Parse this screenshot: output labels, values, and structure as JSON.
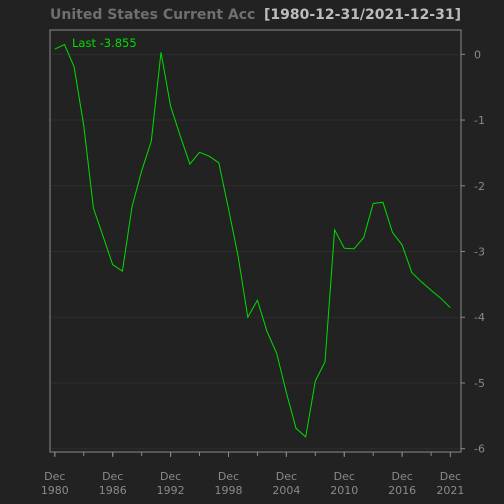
{
  "colors": {
    "background": "#222222",
    "plot_border": "#8a8a8a",
    "grid": "#2d2d2d",
    "line": "#00dd00",
    "title": "#6f6f6f",
    "range_text": "#bdbdbd",
    "tick_text": "#8a8a8a"
  },
  "header": {
    "title": "United States Current Account Balance (% of GDP)",
    "range": "[1980-12-31/2021-12-31]"
  },
  "last_label": "Last -3.855",
  "chart_data": {
    "type": "line",
    "title": "United States Current Account Balance (% of GDP)",
    "subtitle": "[1980-12-31/2021-12-31]",
    "xlabel": "",
    "ylabel": "",
    "x": [
      1980,
      1981,
      1982,
      1983,
      1984,
      1985,
      1986,
      1987,
      1988,
      1989,
      1990,
      1991,
      1992,
      1993,
      1994,
      1995,
      1996,
      1997,
      1998,
      1999,
      2000,
      2001,
      2002,
      2003,
      2004,
      2005,
      2006,
      2007,
      2008,
      2009,
      2010,
      2011,
      2012,
      2013,
      2014,
      2015,
      2016,
      2017,
      2018,
      2019,
      2020,
      2021
    ],
    "series": [
      {
        "values": [
          0.08,
          0.15,
          -0.19,
          -1.09,
          -2.34,
          -2.77,
          -3.2,
          -3.3,
          -2.32,
          -1.77,
          -1.32,
          0.03,
          -0.79,
          -1.24,
          -1.67,
          -1.49,
          -1.55,
          -1.65,
          -2.35,
          -3.07,
          -4.0,
          -3.74,
          -4.22,
          -4.55,
          -5.15,
          -5.69,
          -5.82,
          -4.97,
          -4.68,
          -2.67,
          -2.95,
          -2.96,
          -2.79,
          -2.27,
          -2.25,
          -2.71,
          -2.9,
          -3.32,
          -3.46,
          -3.59,
          -3.71,
          -3.855
        ]
      }
    ],
    "x_ticks": [
      {
        "top": "Dec",
        "bottom": "1980",
        "x": 1980
      },
      {
        "top": "Dec",
        "bottom": "1986",
        "x": 1986
      },
      {
        "top": "Dec",
        "bottom": "1992",
        "x": 1992
      },
      {
        "top": "Dec",
        "bottom": "1998",
        "x": 1998
      },
      {
        "top": "Dec",
        "bottom": "2004",
        "x": 2004
      },
      {
        "top": "Dec",
        "bottom": "2010",
        "x": 2010
      },
      {
        "top": "Dec",
        "bottom": "2016",
        "x": 2016
      },
      {
        "top": "Dec",
        "bottom": "2021",
        "x": 2021
      }
    ],
    "y_ticks": [
      0,
      -1,
      -2,
      -3,
      -4,
      -5,
      -6
    ],
    "xlim": [
      1979.5,
      2022.1
    ],
    "ylim": [
      -6.05,
      0.37
    ],
    "grid": true,
    "last_value": -3.855
  }
}
